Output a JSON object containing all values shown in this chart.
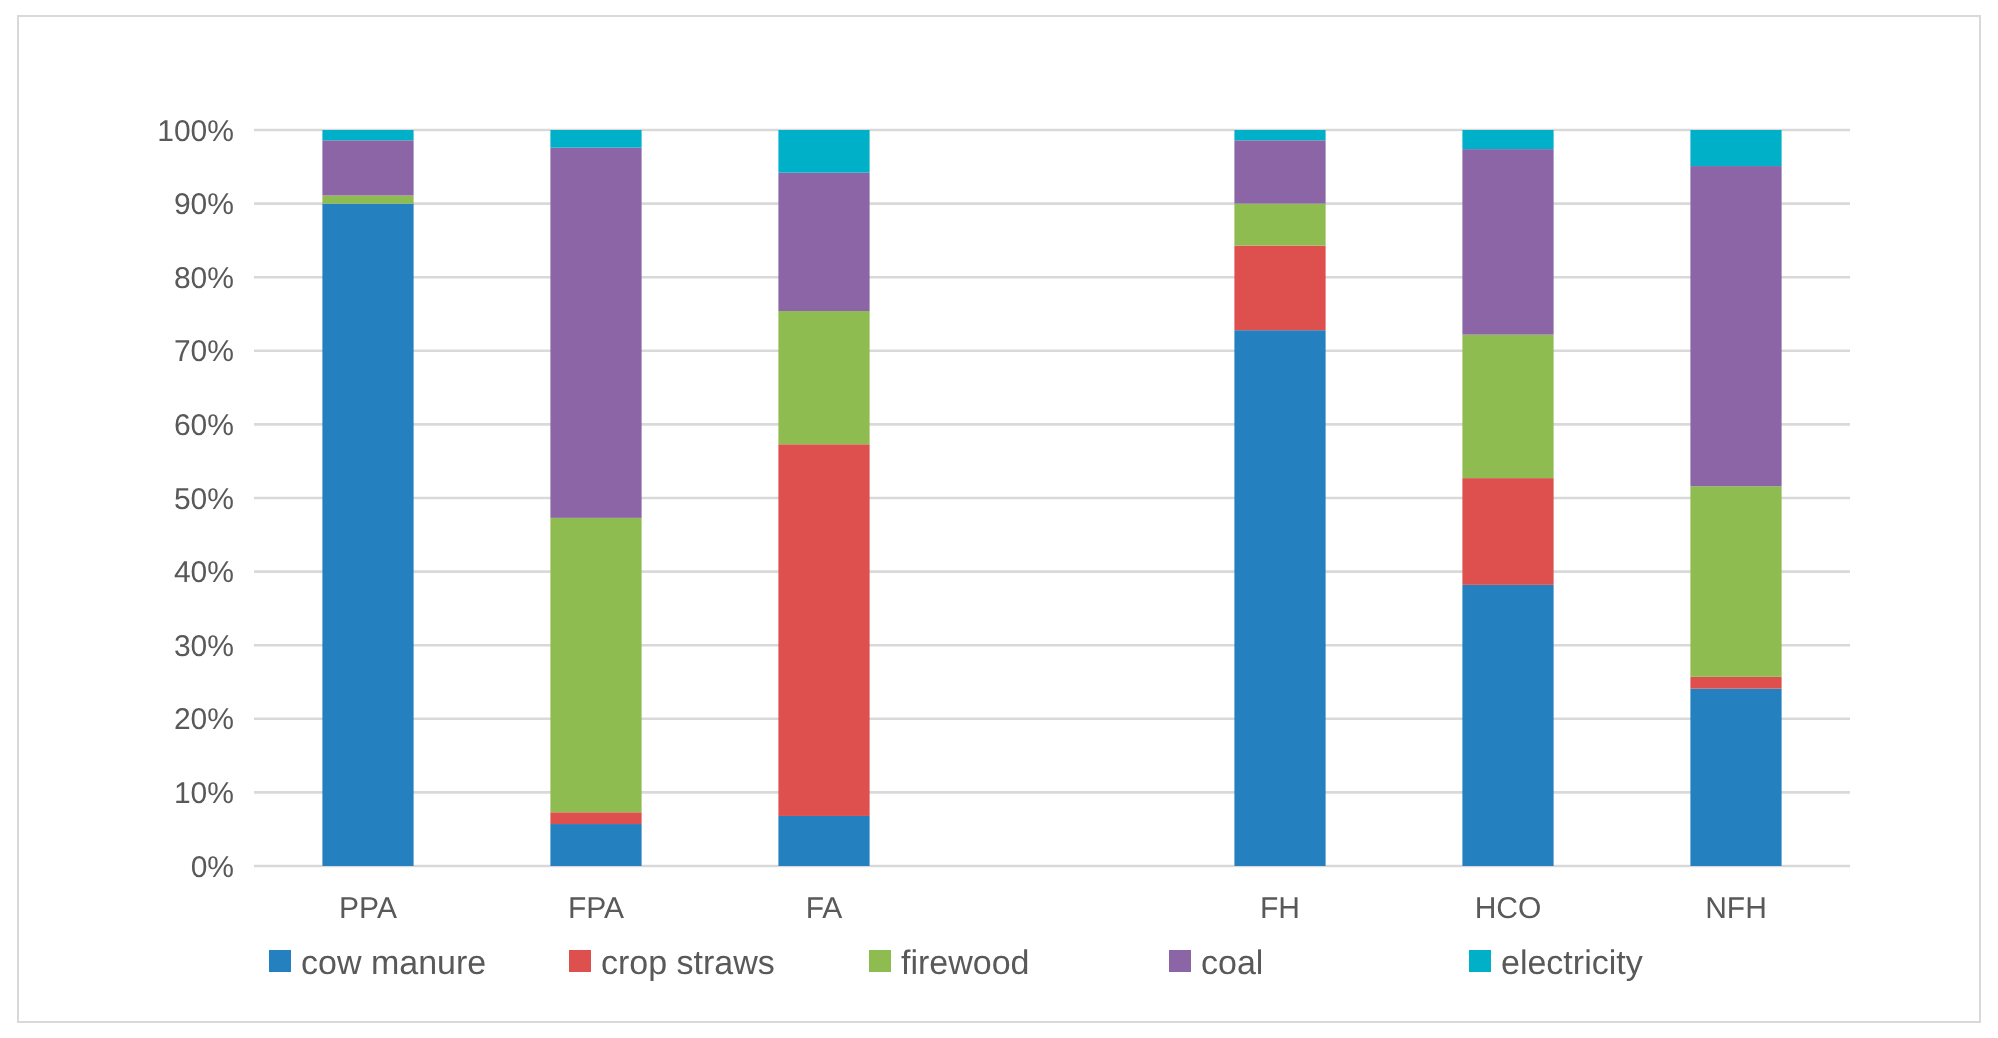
{
  "chart_data": {
    "type": "bar",
    "stacked": true,
    "categories": [
      "PPA",
      "FPA",
      "FA",
      null,
      "FH",
      "HCO",
      "NFH"
    ],
    "series": [
      {
        "name": "cow manure",
        "color": "#2580c0",
        "values": [
          90.0,
          5.7,
          6.8,
          null,
          72.8,
          38.2,
          24.1
        ]
      },
      {
        "name": "crop straws",
        "color": "#de504d",
        "values": [
          0,
          1.6,
          50.5,
          null,
          11.5,
          14.5,
          1.6
        ]
      },
      {
        "name": "firewood",
        "color": "#8fbc50",
        "values": [
          1.1,
          40.0,
          18.1,
          null,
          5.7,
          19.5,
          25.9
        ]
      },
      {
        "name": "coal",
        "color": "#8b65a5",
        "values": [
          7.5,
          50.3,
          18.8,
          null,
          8.6,
          25.2,
          43.5
        ]
      },
      {
        "name": "electricity",
        "color": "#00b0c8",
        "values": [
          1.4,
          2.4,
          5.8,
          null,
          1.4,
          2.6,
          4.9
        ]
      }
    ],
    "ylim": [
      0,
      100
    ],
    "yticks": [
      {
        "value": 0,
        "label": "0%"
      },
      {
        "value": 10,
        "label": "10%"
      },
      {
        "value": 20,
        "label": "20%"
      },
      {
        "value": 30,
        "label": "30%"
      },
      {
        "value": 40,
        "label": "40%"
      },
      {
        "value": 50,
        "label": "50%"
      },
      {
        "value": 60,
        "label": "60%"
      },
      {
        "value": 70,
        "label": "70%"
      },
      {
        "value": 80,
        "label": "80%"
      },
      {
        "value": 90,
        "label": "90%"
      },
      {
        "value": 100,
        "label": "100%"
      }
    ],
    "grid": "y",
    "legend": "bottom"
  }
}
